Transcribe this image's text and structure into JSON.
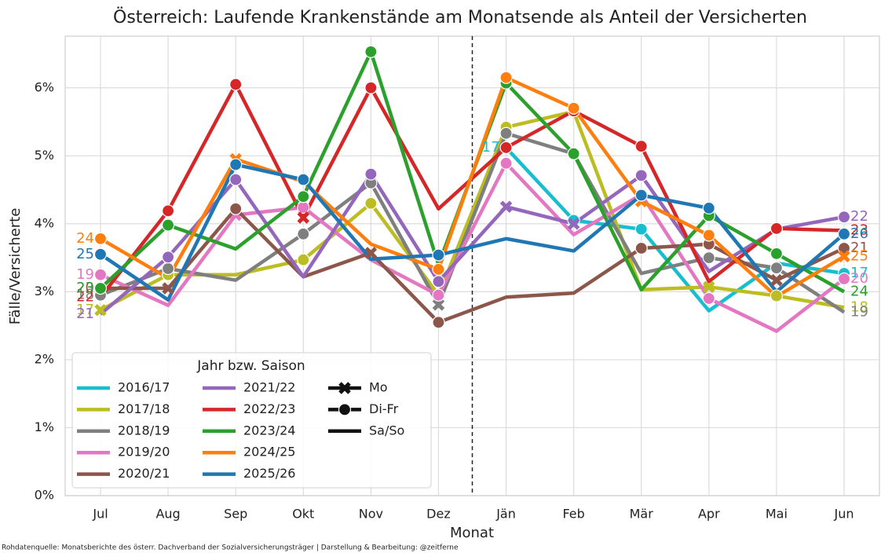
{
  "chart_data": {
    "type": "line",
    "title": "Österreich: Laufende Krankenstände am Monatsende als Anteil der Versicherten",
    "x_label": "Monat",
    "y_label": "Fälle/Versicherte",
    "source": "Rohdatenquelle: Monatsberichte des österr. Dachverband der Sozialversicherungsträger | Darstellung & Bearbeitung: @zeitferne",
    "categories": [
      "Jul",
      "Aug",
      "Sep",
      "Okt",
      "Nov",
      "Dez",
      "Jän",
      "Feb",
      "Mär",
      "Apr",
      "Mai",
      "Jun"
    ],
    "ylim": [
      0,
      6.76
    ],
    "yticks": [
      {
        "value": 0,
        "label": "0%"
      },
      {
        "value": 1,
        "label": "1%"
      },
      {
        "value": 2,
        "label": "2%"
      },
      {
        "value": 3,
        "label": "3%"
      },
      {
        "value": 4,
        "label": "4%"
      },
      {
        "value": 5,
        "label": "5%"
      },
      {
        "value": 6,
        "label": "6%"
      }
    ],
    "grid": true,
    "legend_title": "Jahr bzw. Saison",
    "legend_position": "lower left",
    "marker_legend": [
      {
        "name": "Mo",
        "symbol": "x"
      },
      {
        "name": "Di-Fr",
        "symbol": "circle"
      },
      {
        "name": "Sa/So",
        "symbol": "none"
      }
    ],
    "series": [
      {
        "name": "2016/17",
        "color": "#17becf",
        "start_label": "17",
        "end_label": "17",
        "values": [
          null,
          null,
          null,
          null,
          null,
          null,
          5.12,
          4.05,
          3.92,
          2.72,
          3.42,
          3.27
        ],
        "markers": [
          null,
          null,
          null,
          null,
          null,
          null,
          "Sa/So",
          "Di-Fr",
          "Di-Fr",
          "Sa/So",
          "Sa/So",
          "Di-Fr"
        ]
      },
      {
        "name": "2017/18",
        "color": "#bcbd22",
        "start_label": "17",
        "end_label": "18",
        "values": [
          2.73,
          3.25,
          3.25,
          3.47,
          4.3,
          2.95,
          5.42,
          5.65,
          3.03,
          3.07,
          2.94,
          2.77
        ],
        "markers": [
          "Mo",
          "Di-Fr",
          "Sa/So",
          "Di-Fr",
          "Di-Fr",
          "Sa/So",
          "Di-Fr",
          "Sa/So",
          "Sa/So",
          "Mo",
          "Di-Fr",
          "Sa/So"
        ]
      },
      {
        "name": "2018/19",
        "color": "#7f7f7f",
        "start_label": "18",
        "end_label": "19",
        "values": [
          2.95,
          3.34,
          3.17,
          3.85,
          4.6,
          2.81,
          5.33,
          5.03,
          3.27,
          3.5,
          3.35,
          2.7
        ],
        "markers": [
          "Di-Fr",
          "Di-Fr",
          "Sa/So",
          "Di-Fr",
          "Di-Fr",
          "Mo",
          "Di-Fr",
          "Di-Fr",
          "Sa/So",
          "Di-Fr",
          "Di-Fr",
          "Sa/So"
        ]
      },
      {
        "name": "2019/20",
        "color": "#e377c2",
        "start_label": "19",
        "end_label": "20",
        "values": [
          3.25,
          2.8,
          4.13,
          4.24,
          3.47,
          2.95,
          4.89,
          3.84,
          4.43,
          2.9,
          2.42,
          3.19
        ],
        "markers": [
          "Di-Fr",
          "Sa/So",
          "Mo",
          "Di-Fr",
          "Sa/So",
          "Di-Fr",
          "Di-Fr",
          "Sa/So",
          "Sa/So",
          "Di-Fr",
          "Sa/So",
          "Di-Fr"
        ]
      },
      {
        "name": "2020/21",
        "color": "#8c564b",
        "start_label": "20",
        "end_label": "21",
        "values": [
          3.05,
          3.05,
          4.22,
          3.22,
          3.57,
          2.55,
          2.92,
          2.98,
          3.64,
          3.7,
          3.17,
          3.64
        ],
        "markers": [
          "Sa/So",
          "Mo",
          "Di-Fr",
          "Sa/So",
          "Mo",
          "Di-Fr",
          "Sa/So",
          "Sa/So",
          "Di-Fr",
          "Di-Fr",
          "Mo",
          "Di-Fr"
        ]
      },
      {
        "name": "2021/22",
        "color": "#9467bd",
        "start_label": "21",
        "end_label": "22",
        "values": [
          2.67,
          3.51,
          4.65,
          3.22,
          4.73,
          3.15,
          4.25,
          4.0,
          4.71,
          3.3,
          3.92,
          4.1
        ],
        "markers": [
          "Sa/So",
          "Di-Fr",
          "Di-Fr",
          "Sa/So",
          "Di-Fr",
          "Di-Fr",
          "Mo",
          "Mo",
          "Di-Fr",
          "Sa/So",
          "Sa/So",
          "Di-Fr"
        ]
      },
      {
        "name": "2022/23",
        "color": "#d62728",
        "start_label": "22",
        "end_label": "23",
        "values": [
          2.92,
          4.19,
          6.05,
          4.09,
          6.0,
          4.22,
          5.12,
          5.66,
          5.14,
          3.15,
          3.93,
          3.9
        ],
        "markers": [
          "Sa/So",
          "Di-Fr",
          "Di-Fr",
          "Mo",
          "Di-Fr",
          "Sa/So",
          "Di-Fr",
          "Di-Fr",
          "Di-Fr",
          "Sa/So",
          "Di-Fr",
          "Sa/So"
        ]
      },
      {
        "name": "2023/24",
        "color": "#2ca02c",
        "start_label": "23",
        "end_label": "24",
        "values": [
          3.05,
          3.98,
          3.63,
          4.4,
          6.53,
          3.4,
          6.07,
          5.03,
          3.03,
          4.12,
          3.56,
          3.0
        ],
        "markers": [
          "Di-Fr",
          "Di-Fr",
          "Sa/So",
          "Di-Fr",
          "Di-Fr",
          "Sa/So",
          "Di-Fr",
          "Di-Fr",
          "Sa/So",
          "Di-Fr",
          "Di-Fr",
          "Sa/So"
        ]
      },
      {
        "name": "2024/25",
        "color": "#ff7f0e",
        "start_label": "24",
        "end_label": "25",
        "values": [
          3.78,
          3.2,
          4.95,
          4.62,
          3.7,
          3.33,
          6.15,
          5.7,
          4.33,
          3.83,
          2.93,
          3.52
        ],
        "markers": [
          "Di-Fr",
          "Sa/So",
          "Mo",
          "Sa/So",
          "Sa/So",
          "Di-Fr",
          "Di-Fr",
          "Di-Fr",
          "Mo",
          "Di-Fr",
          "Sa/So",
          "Mo"
        ]
      },
      {
        "name": "2025/26",
        "color": "#1f77b4",
        "start_label": "25",
        "end_label": "26",
        "values": [
          3.55,
          2.88,
          4.87,
          4.65,
          3.48,
          3.54,
          3.78,
          3.6,
          4.42,
          4.23,
          3.0,
          3.85
        ],
        "markers": [
          "Di-Fr",
          "Sa/So",
          "Di-Fr",
          "Di-Fr",
          "Sa/So",
          "Di-Fr",
          "Sa/So",
          "Sa/So",
          "Di-Fr",
          "Di-Fr",
          "Sa/So",
          "Di-Fr"
        ]
      }
    ]
  }
}
